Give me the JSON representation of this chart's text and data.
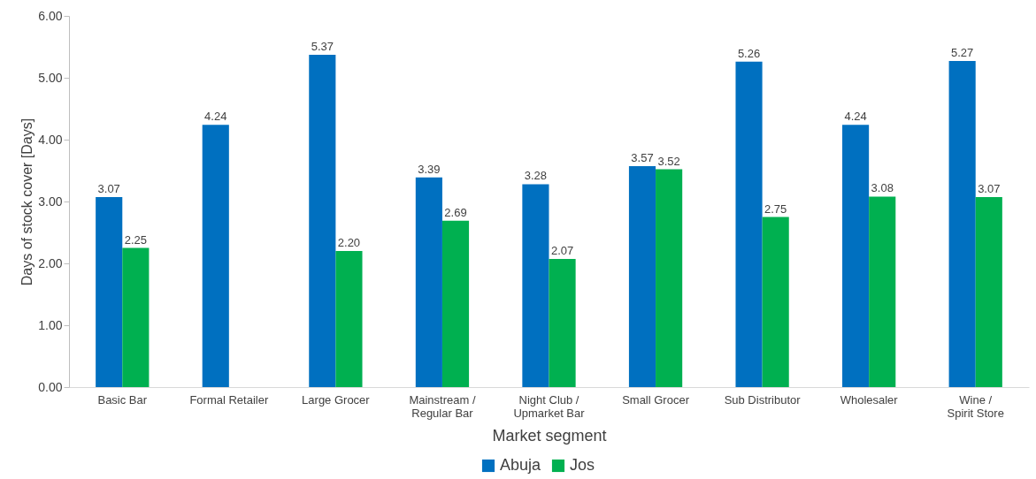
{
  "chart_data": {
    "type": "bar",
    "xlabel": "Market segment",
    "ylabel": "Days of stock cover [Days]",
    "categories": [
      "Basic Bar",
      "Formal Retailer",
      "Large Grocer",
      "Mainstream / Regular Bar",
      "Night Club / Upmarket Bar",
      "Small Grocer",
      "Sub Distributor",
      "Wholesaler",
      "Wine / Spirit Store"
    ],
    "series": [
      {
        "name": "Abuja",
        "color": "#0070c0",
        "values": [
          3.07,
          4.24,
          5.37,
          3.39,
          3.28,
          3.57,
          5.26,
          4.24,
          5.27
        ],
        "value_labels": [
          "3.07",
          "4.24",
          "5.37",
          "3.39",
          "3.28",
          "3.57",
          "5.26",
          "4.24",
          "5.27"
        ]
      },
      {
        "name": "Jos",
        "color": "#00b050",
        "values": [
          2.25,
          null,
          2.2,
          2.69,
          2.07,
          3.52,
          2.75,
          3.08,
          3.07
        ],
        "value_labels": [
          "2.25",
          null,
          "2.20",
          "2.69",
          "2.07",
          "3.52",
          "2.75",
          "3.08",
          "3.07"
        ]
      }
    ],
    "ylim": [
      0,
      6
    ],
    "yticks": [
      {
        "value": 0,
        "label": "0.00"
      },
      {
        "value": 1,
        "label": "1.00"
      },
      {
        "value": 2,
        "label": "2.00"
      },
      {
        "value": 3,
        "label": "3.00"
      },
      {
        "value": 4,
        "label": "4.00"
      },
      {
        "value": 5,
        "label": "5.00"
      },
      {
        "value": 6,
        "label": "6.00"
      }
    ],
    "grid": false,
    "legend": "bottom"
  }
}
